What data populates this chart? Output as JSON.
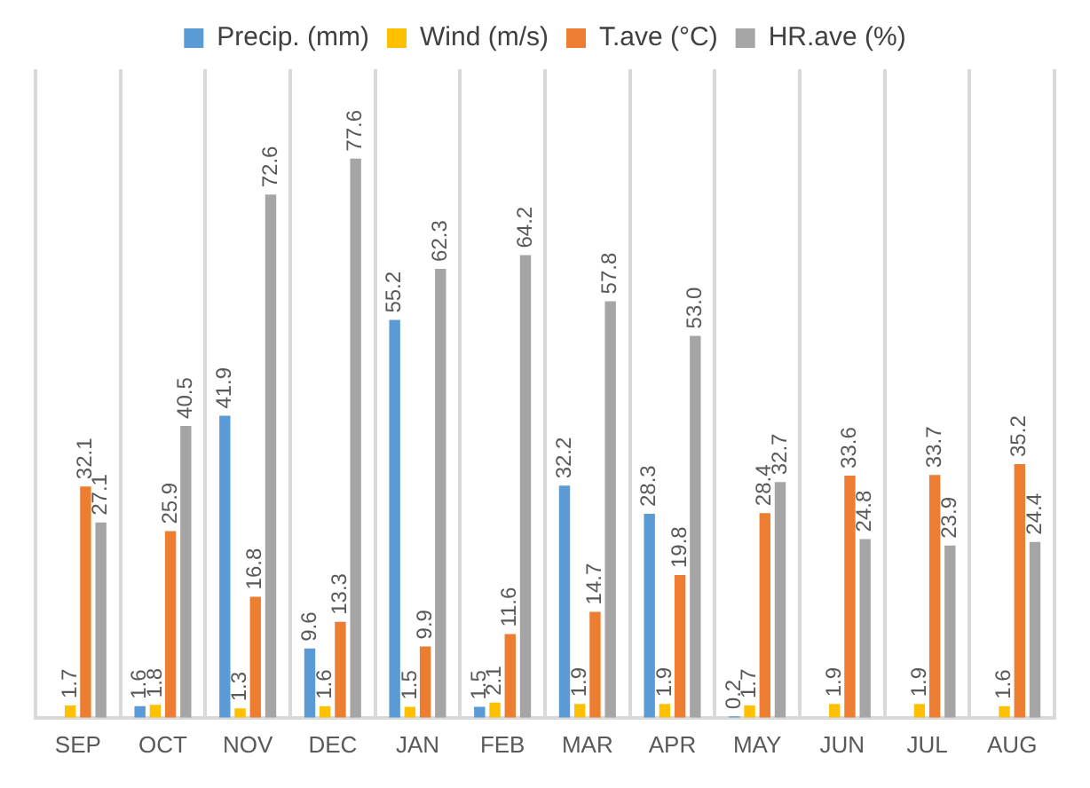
{
  "chart_data": {
    "type": "bar",
    "categories": [
      "SEP",
      "OCT",
      "NOV",
      "DEC",
      "JAN",
      "FEB",
      "MAR",
      "APR",
      "MAY",
      "JUN",
      "JUL",
      "AUG"
    ],
    "series": [
      {
        "name": "Precip. (mm)",
        "color": "#5b9bd5",
        "values": [
          null,
          1.6,
          41.9,
          9.6,
          55.2,
          1.5,
          32.2,
          28.3,
          0.2,
          null,
          null,
          null
        ]
      },
      {
        "name": "Wind (m/s)",
        "color": "#ffc000",
        "values": [
          1.7,
          1.8,
          1.3,
          1.6,
          1.5,
          2.1,
          1.9,
          1.9,
          1.7,
          1.9,
          1.9,
          1.6
        ]
      },
      {
        "name": "T.ave (°C)",
        "color": "#ed7d31",
        "values": [
          32.1,
          25.9,
          16.8,
          13.3,
          9.9,
          11.6,
          14.7,
          19.8,
          28.4,
          33.6,
          33.7,
          35.2
        ]
      },
      {
        "name": "HR.ave (%)",
        "color": "#a5a5a5",
        "values": [
          27.1,
          40.5,
          72.6,
          77.6,
          62.3,
          64.2,
          57.8,
          53.0,
          32.7,
          24.8,
          23.9,
          24.4
        ],
        "value_labels": [
          "27.1",
          "40.5",
          "72.6",
          "77.6",
          "62.3",
          "64.2",
          "57.8",
          "53.0",
          "32.7",
          "24.8",
          "23.9",
          "24.4"
        ]
      }
    ],
    "data_labels": true,
    "grid": "x",
    "legend": "top",
    "tick_labels": "x"
  }
}
